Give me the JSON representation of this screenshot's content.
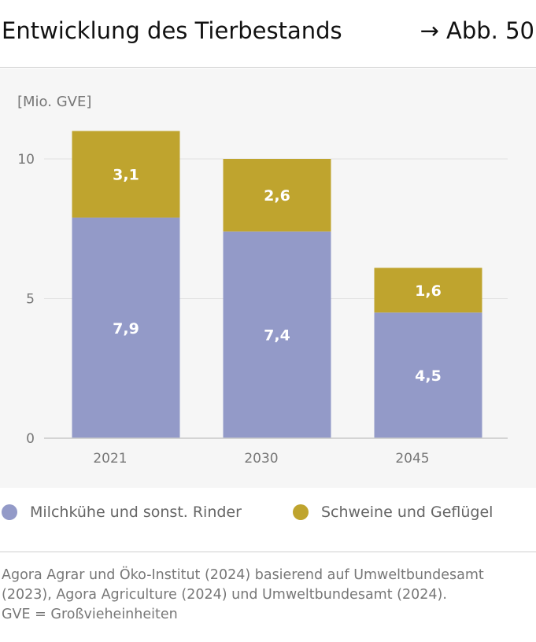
{
  "header": {
    "title": "Entwicklung des Tierbestands",
    "figure_ref": "→ Abb. 50"
  },
  "colors": {
    "cattle": "#939ac8",
    "pigs_poultry": "#bfa42e",
    "grid": "#e3e3e3",
    "axis": "#c9c9c9",
    "tick_text": "#777777",
    "bar_label": "#ffffff"
  },
  "chart_data": {
    "type": "bar",
    "stacked": true,
    "title": "Entwicklung des Tierbestands",
    "ylabel": "[Mio. GVE]",
    "xlabel": "",
    "categories": [
      "2021",
      "2030",
      "2045"
    ],
    "series": [
      {
        "name": "Milchkühe und sonst. Rinder",
        "values": [
          7.9,
          7.4,
          4.5
        ],
        "labels": [
          "7,9",
          "7,4",
          "4,5"
        ]
      },
      {
        "name": "Schweine und Geflügel",
        "values": [
          3.1,
          2.6,
          1.6
        ],
        "labels": [
          "3,1",
          "2,6",
          "1,6"
        ]
      }
    ],
    "ylim": [
      0,
      12
    ],
    "yticks": [
      0,
      5,
      10
    ],
    "ytick_labels": [
      "0",
      "5",
      "10"
    ],
    "grid": true
  },
  "legend": {
    "items": [
      {
        "label": "Milchkühe und sonst. Rinder",
        "color": "#939ac8"
      },
      {
        "label": "Schweine und Geflügel",
        "color": "#bfa42e"
      }
    ]
  },
  "source": {
    "lines": [
      "Agora Agrar und Öko-Institut (2024) basierend auf Umweltbundesamt",
      "(2023), Agora Agriculture (2024) und Umweltbundesamt (2024).",
      "GVE = Großvieheinheiten"
    ]
  }
}
